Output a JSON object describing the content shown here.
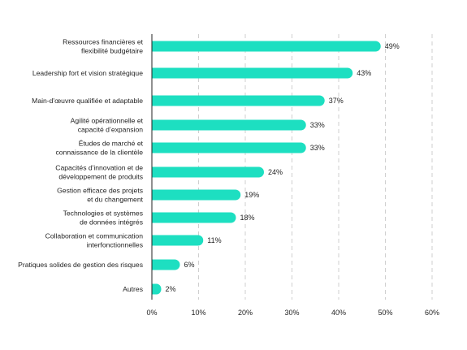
{
  "chart_data": {
    "type": "bar",
    "orientation": "horizontal",
    "categories": [
      [
        "Ressources financières et",
        "flexibilité budgétaire"
      ],
      [
        "Leadership fort et vision stratégique"
      ],
      [
        "Main-d'œuvre qualifiée et adaptable"
      ],
      [
        "Agilité opérationnelle et",
        "capacité d’expansion"
      ],
      [
        "Études de marché et",
        "connaissance de la clientèle"
      ],
      [
        "Capacités d'innovation et de",
        "développement de produits"
      ],
      [
        "Gestion efficace des projets",
        "et du changement"
      ],
      [
        "Technologies et systèmes",
        "de données intégrés"
      ],
      [
        "Collaboration et communication",
        "interfonctionnelles"
      ],
      [
        "Pratiques solides de gestion des risques"
      ],
      [
        "Autres"
      ]
    ],
    "values": [
      49,
      43,
      37,
      33,
      33,
      24,
      19,
      18,
      11,
      6,
      2
    ],
    "value_labels": [
      "49%",
      "43%",
      "37%",
      "33%",
      "33%",
      "24%",
      "19%",
      "18%",
      "11%",
      "6%",
      "2%"
    ],
    "xlim": [
      0,
      60
    ],
    "xticks": [
      0,
      10,
      20,
      30,
      40,
      50,
      60
    ],
    "xtick_labels": [
      "0%",
      "10%",
      "20%",
      "30%",
      "40%",
      "50%",
      "60%"
    ],
    "grid": "vertical dashed",
    "bar_color": "#1ddfc1",
    "title": "",
    "xlabel": "",
    "ylabel": ""
  }
}
